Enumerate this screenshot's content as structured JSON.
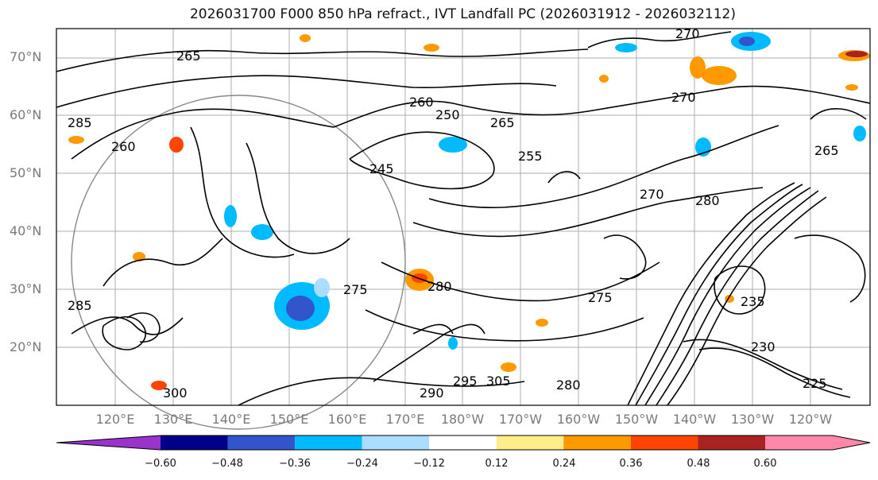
{
  "title": "2026031700 F000 850 hPa refract., IVT Landfall PC (2026031912 - 2026032112)",
  "lat_labels": [
    "70°N",
    "60°N",
    "50°N",
    "40°N",
    "30°N",
    "20°N"
  ],
  "lon_labels": [
    "120°E",
    "130°E",
    "140°E",
    "150°E",
    "160°E",
    "170°E",
    "180°W",
    "170°W",
    "160°W",
    "150°W",
    "140°W",
    "130°W",
    "120°W"
  ],
  "contour_labels": [
    "270",
    "265",
    "260",
    "250",
    "265",
    "255",
    "245",
    "260",
    "270",
    "280",
    "265",
    "275",
    "280",
    "285",
    "270",
    "275",
    "285",
    "300",
    "290",
    "295",
    "305",
    "280",
    "235",
    "230",
    "225"
  ],
  "colorbar": {
    "ticks": [
      "−0.60",
      "−0.48",
      "−0.36",
      "−0.24",
      "−0.12",
      "0.12",
      "0.24",
      "0.36",
      "0.48",
      "0.60"
    ],
    "colors": [
      "#9933cc",
      "#000088",
      "#3355cc",
      "#00bbff",
      "#aaddff",
      "#ffffff",
      "#ffee88",
      "#ff9900",
      "#ff4400",
      "#aa2222",
      "#ff88aa"
    ]
  },
  "colors": {
    "contour": "#000000",
    "grid": "#999999",
    "axis_label": "#7a7a7a"
  }
}
